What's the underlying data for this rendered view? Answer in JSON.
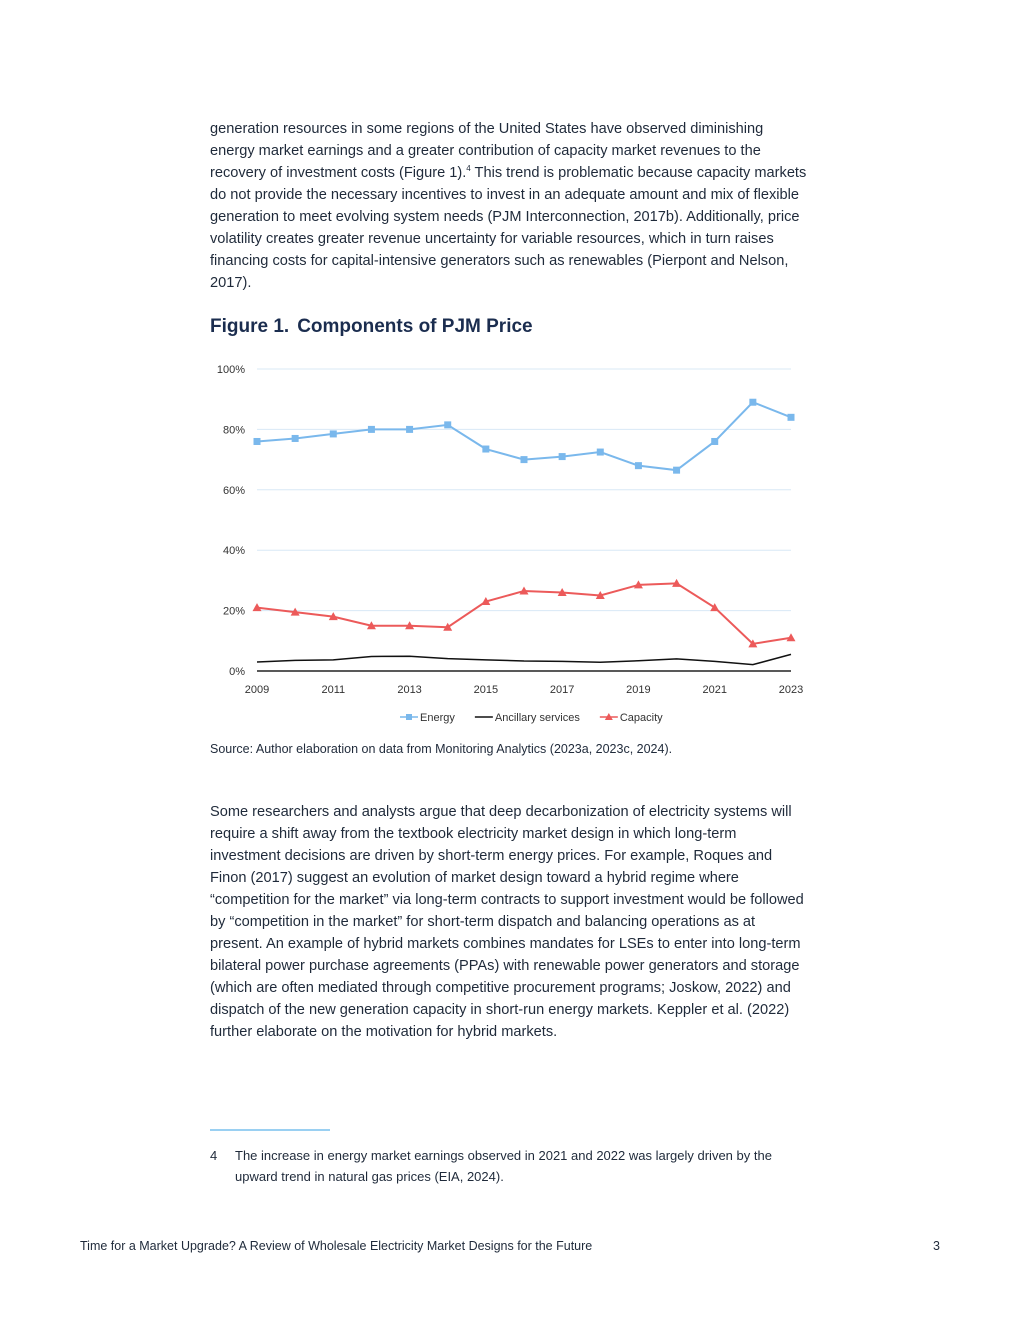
{
  "body": {
    "para1_a": "generation resources in some regions of the United States have observed diminishing energy market earnings and a greater contribution of capacity market revenues to the recovery of investment costs (Figure 1).",
    "para1_sup": "4",
    "para1_b": " This trend is problematic because capacity markets do not provide the necessary incentives to invest in an adequate amount and mix of flexible generation to meet evolving system needs (PJM Interconnection, 2017b). Additionally, price volatility creates greater revenue uncertainty for variable resources, which in turn raises financing costs for capital-intensive generators such as renewables (Pierpont and Nelson, 2017).",
    "para2": "Some researchers and analysts argue that deep decarbonization of electricity systems will require a shift away from the textbook electricity market design in which long-term investment decisions are driven by short-term energy prices. For example, Roques and Finon (2017) suggest an evolution of market design toward a hybrid regime where “competition for the market” via long-term contracts to support investment would be followed by “competition in the market” for short-term dispatch and balancing operations as at present. An example of hybrid markets combines mandates for LSEs to enter into long-term bilateral power purchase agreements (PPAs) with renewable power generators and storage (which are often mediated through competitive procurement programs; Joskow, 2022) and dispatch of the new generation capacity in short-run energy markets. Keppler et al. (2022) further elaborate on the motivation for hybrid markets."
  },
  "figure": {
    "number": "Figure 1.",
    "title": "Components of PJM Price",
    "source": "Source: Author elaboration on data from Monitoring Analytics (2023a, 2023c, 2024)."
  },
  "chart_data": {
    "type": "line",
    "title": "Components of PJM Price",
    "x": [
      2009,
      2010,
      2011,
      2012,
      2013,
      2014,
      2015,
      2016,
      2017,
      2018,
      2019,
      2020,
      2021,
      2022,
      2023
    ],
    "x_tick_labels": [
      "2009",
      "2011",
      "2013",
      "2015",
      "2017",
      "2019",
      "2021",
      "2023"
    ],
    "y_tick_labels": [
      "0%",
      "20%",
      "40%",
      "60%",
      "80%",
      "100%"
    ],
    "ylim": [
      0,
      100
    ],
    "grid": true,
    "legend_position": "bottom",
    "series": [
      {
        "name": "Energy",
        "color": "#7ab8ec",
        "marker": "square",
        "values": [
          76,
          77,
          78.5,
          80,
          80,
          81.5,
          73.5,
          70,
          71,
          72.5,
          68,
          66.5,
          76,
          89,
          84
        ]
      },
      {
        "name": "Ancillary services",
        "color": "#111111",
        "marker": "none",
        "values": [
          3,
          3.5,
          3.7,
          4.8,
          4.9,
          4.1,
          3.7,
          3.3,
          3.2,
          2.9,
          3.4,
          4,
          3.2,
          2.1,
          5.5
        ]
      },
      {
        "name": "Capacity",
        "color": "#ec5a5a",
        "marker": "triangle",
        "values": [
          21,
          19.5,
          18,
          15,
          15,
          14.5,
          23,
          26.5,
          26,
          25,
          28.5,
          29,
          21,
          9,
          11
        ]
      }
    ]
  },
  "footnote": {
    "number": "4",
    "text": "The increase in energy market earnings observed in 2021 and 2022 was largely driven by the upward trend in natural gas prices (EIA, 2024)."
  },
  "footer": {
    "title": "Time for a Market Upgrade? A Review of Wholesale Electricity Market Designs for the Future",
    "page": "3"
  }
}
